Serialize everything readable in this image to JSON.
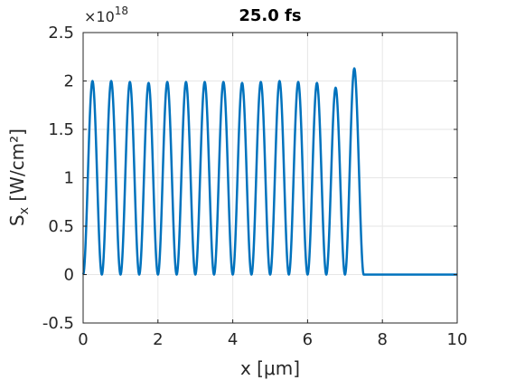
{
  "chart_data": {
    "type": "line",
    "title": "25.0 fs",
    "xlabel": "x [μm]",
    "ylabel": "S_x [W/cm²]",
    "ylabel_main": "S",
    "ylabel_sub": "x",
    "ylabel_units": " [W/cm²]",
    "xlim": [
      0,
      10
    ],
    "ylim": [
      -0.5,
      2.5
    ],
    "y_exponent_base": "×10",
    "y_exponent": "18",
    "xticks": [
      0,
      2,
      4,
      6,
      8,
      10
    ],
    "xtick_labels": [
      "0",
      "2",
      "4",
      "6",
      "8",
      "10"
    ],
    "yticks": [
      -0.5,
      0,
      0.5,
      1,
      1.5,
      2,
      2.5
    ],
    "ytick_labels": [
      "-0.5",
      "0",
      "0.5",
      "1",
      "1.5",
      "2",
      "2.5"
    ],
    "grid": true,
    "line_color": "#0072BD",
    "axis_color": "#262626",
    "grid_color": "#e6e6e6",
    "series": [
      {
        "peaks_x": [
          0.25,
          0.75,
          1.25,
          1.75,
          2.25,
          2.75,
          3.25,
          3.75,
          4.25,
          4.75,
          5.25,
          5.75,
          6.25,
          6.75,
          7.25
        ],
        "peaks_y": [
          2.0,
          2.0,
          1.99,
          1.98,
          1.99,
          1.99,
          1.99,
          1.99,
          1.98,
          1.99,
          2.0,
          1.99,
          1.98,
          1.93,
          2.13
        ],
        "wavelength": 0.5,
        "front_x": 7.5,
        "x_end": 10,
        "baseline": 0
      }
    ]
  }
}
